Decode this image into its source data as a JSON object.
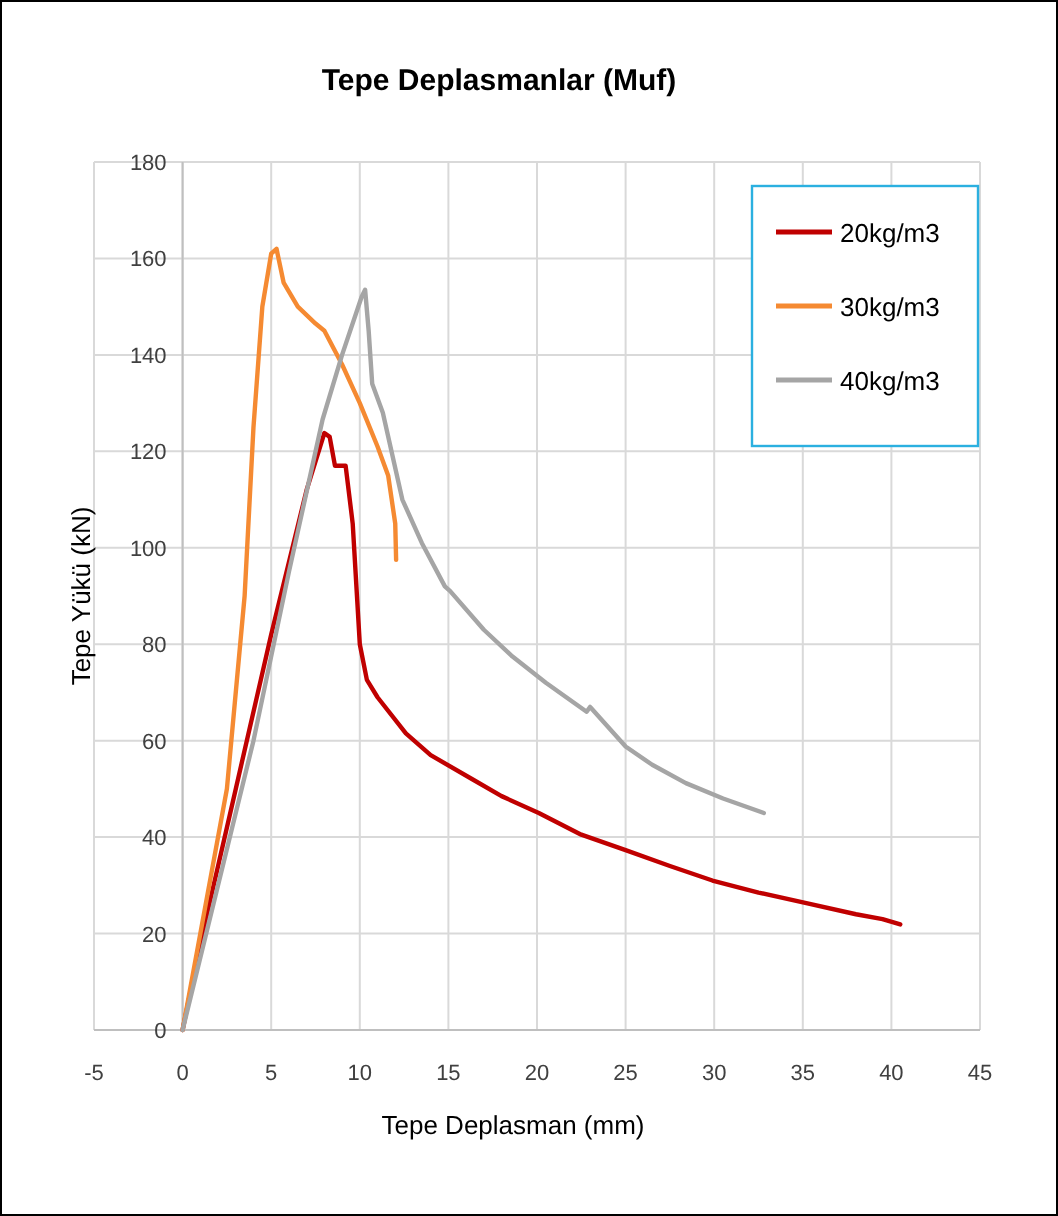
{
  "chart_data": {
    "type": "line",
    "title": "Tepe Deplasmanlar (Muf)",
    "xlabel": "Tepe Deplasman (mm)",
    "ylabel": "Tepe Yükü (kN)",
    "xlim": [
      -5,
      45
    ],
    "xticks": [
      -5,
      0,
      5,
      10,
      15,
      20,
      25,
      30,
      35,
      40,
      45
    ],
    "ylim": [
      0,
      180
    ],
    "yticks": [
      0,
      20,
      40,
      60,
      80,
      100,
      120,
      140,
      160,
      180
    ],
    "grid": true,
    "legend": "top right",
    "marker": "none",
    "line_style": "solid",
    "series": [
      {
        "name": "20kg/m3",
        "color": "#c00000",
        "x": [
          0,
          1,
          3,
          5,
          7,
          8,
          8.3,
          8.6,
          9.2,
          9.6,
          10,
          10.4,
          11,
          12.6,
          14,
          16.4,
          18,
          20.1,
          22.5,
          25,
          27.5,
          29.9,
          32.5,
          35.2,
          38,
          39.5,
          40.5
        ],
        "values": [
          0,
          18,
          50,
          82,
          112,
          123.8,
          123,
          117,
          117,
          105,
          80,
          72.6,
          69,
          61.5,
          57,
          51.9,
          48.5,
          45,
          40.5,
          37.3,
          34,
          31,
          28.5,
          26.3,
          24,
          23,
          21.9
        ]
      },
      {
        "name": "30kg/m3",
        "color": "#f58a32",
        "x": [
          0,
          1,
          2.5,
          3.5,
          4,
          4.5,
          5,
          5.3,
          5.7,
          6.5,
          7.5,
          8,
          9,
          10,
          11,
          11.6,
          12,
          12.05
        ],
        "values": [
          0,
          20,
          50,
          90,
          125,
          150,
          161,
          162,
          155,
          150,
          146.5,
          145,
          138,
          130,
          121,
          115,
          105,
          97.5
        ]
      },
      {
        "name": "40kg/m3",
        "color": "#a5a5a5",
        "x": [
          0,
          2,
          4,
          6,
          7.9,
          9,
          10.1,
          10.3,
          10.5,
          10.7,
          11.3,
          12.4,
          13.5,
          14.8,
          15.1,
          17,
          18.6,
          20.5,
          22.8,
          23,
          25,
          26.5,
          28.4,
          30.5,
          32.8
        ],
        "values": [
          0,
          30,
          60,
          95,
          126.6,
          140,
          152,
          153.5,
          145,
          134,
          128,
          110,
          101,
          92,
          91,
          83,
          77.5,
          72,
          66,
          67,
          58.8,
          55,
          51.2,
          48,
          45
        ]
      }
    ]
  }
}
